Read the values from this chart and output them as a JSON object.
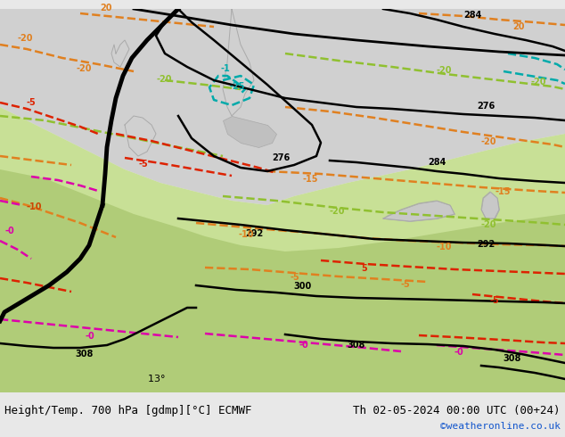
{
  "title_left": "Height/Temp. 700 hPa [gdmp][°C] ECMWF",
  "title_right": "Th 02-05-2024 00:00 UTC (00+24)",
  "credit": "©weatheronline.co.uk",
  "bg_color": "#d8d8d8",
  "footer_bg": "#e8e8e8",
  "land_green": "#c8e096",
  "land_green2": "#b0cc78",
  "sea_color": "#c8c8c8",
  "font_size_title": 9,
  "font_size_credit": 8
}
